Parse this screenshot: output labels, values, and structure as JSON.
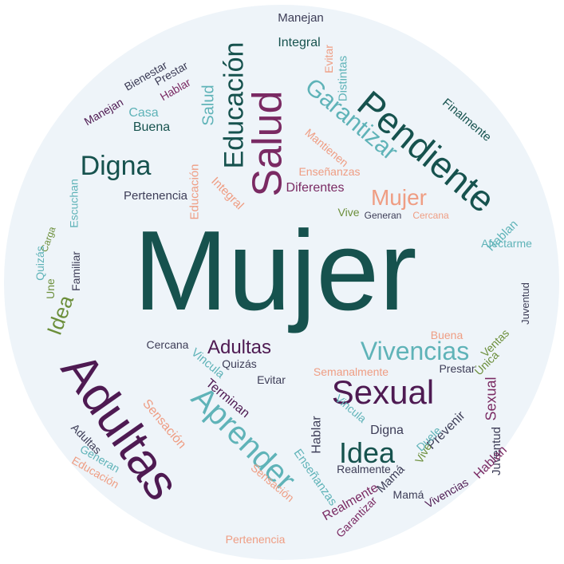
{
  "colors": {
    "background": "#eef4f9",
    "dark_teal": "#16524e",
    "purple": "#4e1a52",
    "plum": "#7a2a63",
    "light_teal": "#5fb3b8",
    "salmon": "#ef9d83",
    "olive": "#6b8e3a",
    "slate": "#3d3d57",
    "grey": "#7a7a7a"
  },
  "words": [
    {
      "text": "Mujer",
      "color": "dark_teal",
      "rotate": 0
    },
    {
      "text": "Adultas",
      "color": "purple",
      "rotate": 55
    },
    {
      "text": "Pendiente",
      "color": "dark_teal",
      "rotate": 40
    },
    {
      "text": "Aprender",
      "color": "light_teal",
      "rotate": 45
    },
    {
      "text": "Sexual",
      "color": "purple",
      "rotate": 0
    },
    {
      "text": "Garantizar",
      "color": "light_teal",
      "rotate": 40
    },
    {
      "text": "Salud",
      "color": "plum",
      "rotate": -90
    },
    {
      "text": "Educación",
      "color": "dark_teal",
      "rotate": -90
    },
    {
      "text": "Vivencias",
      "color": "light_teal",
      "rotate": 0
    },
    {
      "text": "Digna",
      "color": "dark_teal",
      "rotate": 0
    },
    {
      "text": "Idea",
      "color": "dark_teal",
      "rotate": 0
    },
    {
      "text": "Mujer",
      "color": "salmon",
      "rotate": 0
    },
    {
      "text": "Adultas",
      "color": "purple",
      "rotate": 0
    },
    {
      "text": "Idea",
      "color": "olive",
      "rotate": -70
    },
    {
      "text": "Sensación",
      "color": "salmon",
      "rotate": 50
    },
    {
      "text": "Finalmente",
      "color": "dark_teal",
      "rotate": 40
    },
    {
      "text": "Mantienen",
      "color": "salmon",
      "rotate": 40
    },
    {
      "text": "Terminan",
      "color": "purple",
      "rotate": 40
    },
    {
      "text": "Vincula",
      "color": "light_teal",
      "rotate": 40
    },
    {
      "text": "Vincula",
      "color": "light_teal",
      "rotate": 40
    },
    {
      "text": "Salud",
      "color": "light_teal",
      "rotate": -90
    },
    {
      "text": "Educación",
      "color": "salmon",
      "rotate": -90
    },
    {
      "text": "Buena",
      "color": "dark_teal",
      "rotate": 0
    },
    {
      "text": "Casa",
      "color": "light_teal",
      "rotate": 0
    },
    {
      "text": "Pertenencia",
      "color": "slate",
      "rotate": 0
    },
    {
      "text": "Cercana",
      "color": "slate",
      "rotate": 0
    },
    {
      "text": "Semanalmente",
      "color": "salmon",
      "rotate": 0
    },
    {
      "text": "Evitar",
      "color": "slate",
      "rotate": 0
    },
    {
      "text": "Quizás",
      "color": "slate",
      "rotate": 0
    },
    {
      "text": "Prestar",
      "color": "slate",
      "rotate": 0
    },
    {
      "text": "Realmente",
      "color": "plum",
      "rotate": -30
    },
    {
      "text": "Sexual",
      "color": "plum",
      "rotate": -90
    },
    {
      "text": "Juventud",
      "color": "slate",
      "rotate": -90
    },
    {
      "text": "Hablan",
      "color": "plum",
      "rotate": -45
    },
    {
      "text": "Prevenir",
      "color": "slate",
      "rotate": -45
    },
    {
      "text": "Vivencias",
      "color": "purple",
      "rotate": -30
    },
    {
      "text": "Mamá",
      "color": "slate",
      "rotate": -45
    },
    {
      "text": "Enseñanzas",
      "color": "light_teal",
      "rotate": 55
    },
    {
      "text": "Integral",
      "color": "salmon",
      "rotate": 45
    },
    {
      "text": "Diferentes",
      "color": "plum",
      "rotate": 0
    },
    {
      "text": "Manejan",
      "color": "slate",
      "rotate": 0
    },
    {
      "text": "Integral",
      "color": "dark_teal",
      "rotate": 0
    },
    {
      "text": "Bienestar",
      "color": "slate",
      "rotate": -30
    },
    {
      "text": "Escuchan",
      "color": "light_teal",
      "rotate": -90
    },
    {
      "text": "Familiar",
      "color": "slate",
      "rotate": -90
    },
    {
      "text": "Generan",
      "color": "light_teal",
      "rotate": 30
    },
    {
      "text": "Educación",
      "color": "salmon",
      "rotate": 30
    },
    {
      "text": "Hablar",
      "color": "slate",
      "rotate": -90
    },
    {
      "text": "Digna",
      "color": "slate",
      "rotate": 0
    },
    {
      "text": "Vive",
      "color": "olive",
      "rotate": -60
    },
    {
      "text": "Duele",
      "color": "light_teal",
      "rotate": -45
    },
    {
      "text": "Ventas",
      "color": "olive",
      "rotate": -45
    },
    {
      "text": "Única",
      "color": "olive",
      "rotate": -45
    },
    {
      "text": "Evitar",
      "color": "salmon",
      "rotate": -90
    },
    {
      "text": "Distintas",
      "color": "light_teal",
      "rotate": -90
    },
    {
      "text": "Prestar",
      "color": "slate",
      "rotate": -30
    },
    {
      "text": "Hablar",
      "color": "plum",
      "rotate": -30
    },
    {
      "text": "Buena",
      "color": "salmon",
      "rotate": 0
    },
    {
      "text": "Afectarme",
      "color": "light_teal",
      "rotate": 0
    },
    {
      "text": "Vive",
      "color": "olive",
      "rotate": 0
    },
    {
      "text": "Generan",
      "color": "slate",
      "rotate": 0
    },
    {
      "text": "Cercana",
      "color": "salmon",
      "rotate": 0
    },
    {
      "text": "Hablan",
      "color": "light_teal",
      "rotate": -45
    },
    {
      "text": "Juventud",
      "color": "slate",
      "rotate": -90
    },
    {
      "text": "Carga",
      "color": "olive",
      "rotate": -70
    },
    {
      "text": "Quizás",
      "color": "light_teal",
      "rotate": -90
    },
    {
      "text": "Une",
      "color": "olive",
      "rotate": -90
    },
    {
      "text": "Manejan",
      "color": "purple",
      "rotate": -30
    },
    {
      "text": "Enseñanzas",
      "color": "salmon",
      "rotate": 0
    },
    {
      "text": "Garantizar",
      "color": "plum",
      "rotate": -45
    },
    {
      "text": "Adultas",
      "color": "slate",
      "rotate": 45
    },
    {
      "text": "Sensación",
      "color": "salmon",
      "rotate": 40
    },
    {
      "text": "Pertenencia",
      "color": "salmon",
      "rotate": 0
    },
    {
      "text": "Realmente",
      "color": "slate",
      "rotate": 0
    },
    {
      "text": "Mamá",
      "color": "slate",
      "rotate": 0
    }
  ]
}
